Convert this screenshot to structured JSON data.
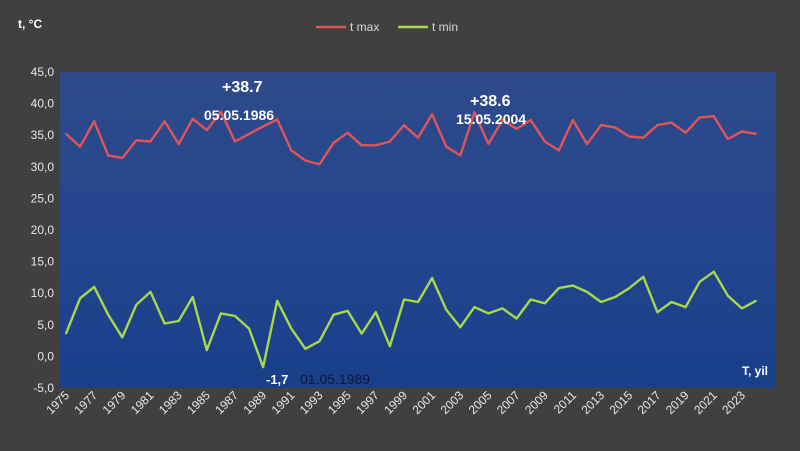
{
  "chart_data": {
    "type": "line",
    "ylabel": "t, °C",
    "xlabel": "T, yil",
    "ylim": [
      -5,
      45
    ],
    "yticks": [
      "45,0",
      "40,0",
      "35,0",
      "30,0",
      "25,0",
      "20,0",
      "15,0",
      "10,0",
      "5,0",
      "0,0",
      "-5,0"
    ],
    "x": [
      1975,
      1976,
      1977,
      1978,
      1979,
      1980,
      1981,
      1982,
      1983,
      1984,
      1985,
      1986,
      1987,
      1988,
      1989,
      1990,
      1991,
      1992,
      1993,
      1994,
      1995,
      1996,
      1997,
      1998,
      1999,
      2000,
      2001,
      2002,
      2003,
      2004,
      2005,
      2006,
      2007,
      2008,
      2009,
      2010,
      2011,
      2012,
      2013,
      2014,
      2015,
      2016,
      2017,
      2018,
      2019,
      2020,
      2021,
      2022,
      2023,
      2024
    ],
    "xtick_labels": [
      "1975",
      "1977",
      "1979",
      "1981",
      "1983",
      "1985",
      "1987",
      "1989",
      "1991",
      "1993",
      "1995",
      "1997",
      "1999",
      "2001",
      "2003",
      "2005",
      "2007",
      "2009",
      "2011",
      "2013",
      "2015",
      "2017",
      "2019",
      "2021",
      "2023"
    ],
    "legend_position": "top",
    "grid": false,
    "series": [
      {
        "name": "t max",
        "color": "#e05555",
        "values": [
          35.2,
          33.2,
          37.2,
          31.8,
          31.4,
          34.2,
          34.0,
          37.2,
          33.6,
          37.6,
          35.8,
          38.7,
          34.0,
          35.2,
          36.4,
          37.5,
          32.6,
          31.0,
          30.4,
          33.8,
          35.4,
          33.4,
          33.4,
          34.0,
          36.6,
          34.6,
          38.3,
          33.2,
          31.8,
          38.6,
          33.6,
          37.4,
          36.0,
          37.4,
          34.0,
          32.6,
          37.4,
          33.6,
          36.6,
          36.2,
          34.8,
          34.6,
          36.6,
          37.0,
          35.4,
          37.8,
          38.0,
          34.4,
          35.6,
          35.2
        ]
      },
      {
        "name": "t min",
        "color": "#a9d948",
        "values": [
          3.6,
          9.2,
          11.0,
          6.6,
          3.0,
          8.2,
          10.2,
          5.2,
          5.6,
          9.4,
          1.0,
          6.8,
          6.4,
          4.4,
          -1.7,
          8.8,
          4.4,
          1.2,
          2.4,
          6.6,
          7.2,
          3.6,
          7.0,
          1.6,
          9.0,
          8.6,
          12.4,
          7.4,
          4.6,
          7.8,
          6.8,
          7.6,
          6.0,
          9.0,
          8.4,
          10.8,
          11.2,
          10.2,
          8.6,
          9.4,
          10.8,
          12.6,
          7.0,
          8.6,
          7.8,
          11.8,
          13.4,
          9.6,
          7.6,
          8.8
        ]
      }
    ],
    "annotations": [
      {
        "value": "+38.7",
        "date": "05.05.1986"
      },
      {
        "value": "+38.6",
        "date": "15.05.2004"
      },
      {
        "value": "-1,7",
        "date": "01.05.1989"
      }
    ]
  }
}
